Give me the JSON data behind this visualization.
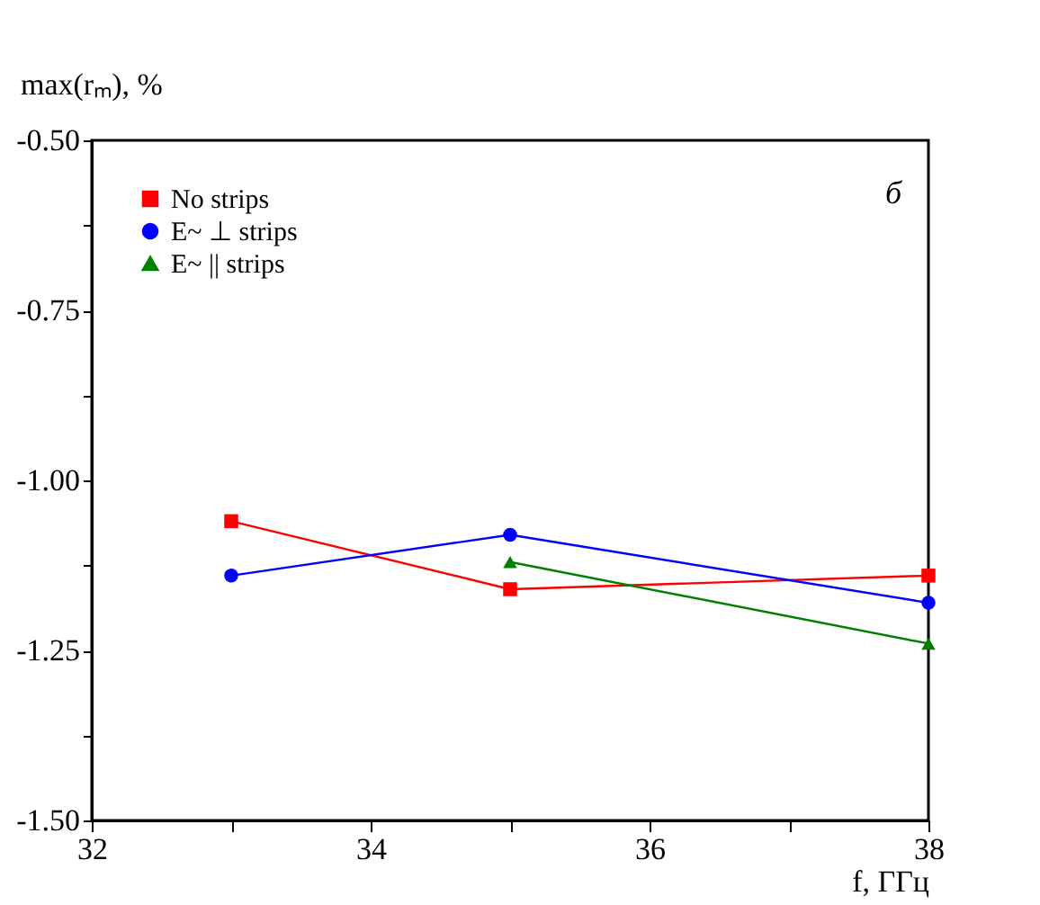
{
  "chart_data": {
    "type": "line",
    "xlabel": "f, ГГц",
    "ylabel": "max(rₘ), %",
    "annotations": [
      "б"
    ],
    "legend": "top left",
    "line_style": "solid",
    "grid": false,
    "xlim": [
      32,
      38
    ],
    "ylim": [
      -1.5,
      -0.5
    ],
    "xticks": [
      32,
      {
        "value": 33,
        "label": null
      },
      34,
      {
        "value": 35,
        "label": null
      },
      36,
      {
        "value": 37,
        "label": null
      },
      38
    ],
    "yticks": [
      {
        "value": -1.5,
        "label": "-1.50"
      },
      {
        "value": -1.375,
        "label": null
      },
      {
        "value": -1.25,
        "label": "-1.25"
      },
      {
        "value": -1.125,
        "label": null
      },
      {
        "value": -1.0,
        "label": "-1.00"
      },
      {
        "value": -0.875,
        "label": null
      },
      {
        "value": -0.75,
        "label": "-0.75"
      },
      {
        "value": -0.625,
        "label": null
      },
      {
        "value": -0.5,
        "label": "-0.50"
      }
    ],
    "series": [
      {
        "name": "No strips",
        "color": "#ff0000",
        "marker": "square",
        "x": [
          33,
          35,
          38
        ],
        "values": [
          -1.06,
          -1.16,
          -1.14
        ]
      },
      {
        "name": "E~ ⊥ strips",
        "color": "#0000ff",
        "marker": "circle",
        "x": [
          33,
          35,
          38
        ],
        "values": [
          -1.14,
          -1.08,
          -1.18
        ]
      },
      {
        "name": "E~ || strips",
        "color": "#008000",
        "marker": "triangle",
        "x": [
          35,
          38
        ],
        "values": [
          -1.12,
          -1.24
        ]
      }
    ]
  }
}
